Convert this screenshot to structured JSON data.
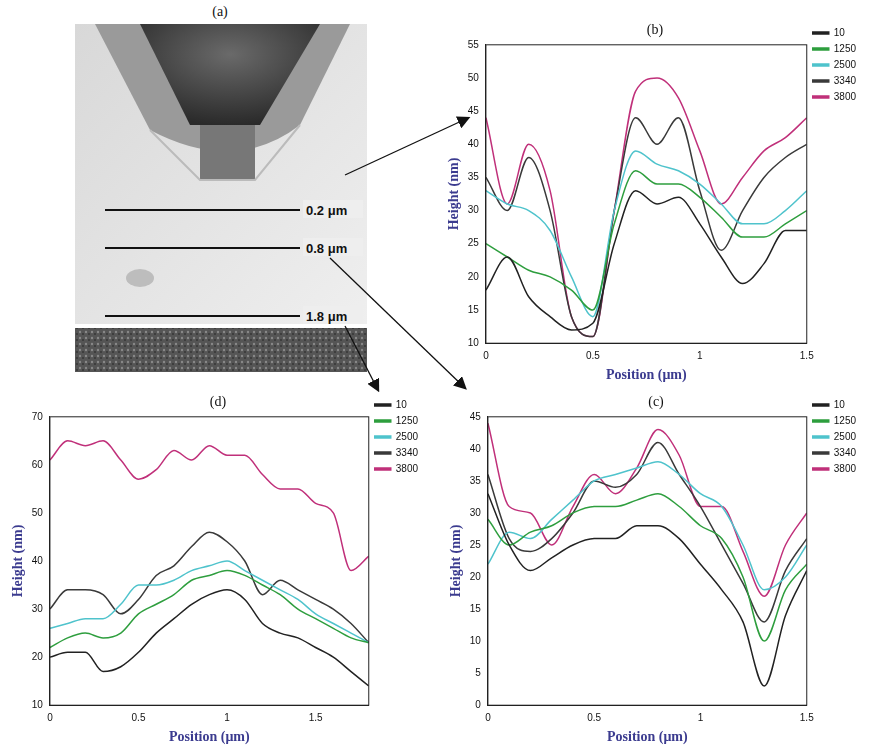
{
  "image_panel": {
    "title": "(a)",
    "scan_lines": [
      "0.2 μm",
      "0.8 μm",
      "1.8 μm"
    ]
  },
  "chart_data": [
    {
      "type": "line",
      "title": "(b)",
      "x_label": "Position (μm)",
      "y_label": "Height (nm)",
      "x": [
        0,
        0.1,
        0.2,
        0.3,
        0.4,
        0.5,
        0.6,
        0.7,
        0.8,
        0.9,
        1.0,
        1.1,
        1.2,
        1.3,
        1.4,
        1.5
      ],
      "series": [
        {
          "name": "10",
          "color": "#222222",
          "values": [
            18,
            23,
            17,
            14,
            12,
            13,
            25,
            33,
            31,
            32,
            28,
            23,
            19,
            22,
            27,
            27
          ]
        },
        {
          "name": "1250",
          "color": "#2e9e3e",
          "values": [
            25,
            23,
            21,
            20,
            18,
            15,
            28,
            36,
            34,
            34,
            32,
            29,
            26,
            26,
            28,
            30
          ]
        },
        {
          "name": "2500",
          "color": "#4fc3cc",
          "values": [
            33,
            31,
            30,
            27,
            20,
            14,
            30,
            39,
            37,
            36,
            34,
            31,
            28,
            28,
            30,
            33
          ]
        },
        {
          "name": "3340",
          "color": "#3a3a3a",
          "values": [
            35,
            30,
            38,
            30,
            14,
            11,
            30,
            44,
            40,
            44,
            33,
            24,
            30,
            35,
            38,
            40
          ]
        },
        {
          "name": "3800",
          "color": "#c0307a",
          "values": [
            44,
            31,
            40,
            33,
            14,
            11,
            30,
            48,
            50,
            47,
            39,
            31,
            35,
            39,
            41,
            44
          ]
        }
      ],
      "xlim": [
        0,
        1.5
      ],
      "xticks": [
        0,
        0.5,
        1,
        1.5
      ],
      "ylim": [
        10,
        55
      ],
      "yticks": [
        10,
        15,
        20,
        25,
        30,
        35,
        40,
        45,
        50,
        55
      ],
      "grid": false,
      "legend": "right"
    },
    {
      "type": "line",
      "title": "(c)",
      "x_label": "Position (μm)",
      "y_label": "Height (nm)",
      "x": [
        0,
        0.1,
        0.2,
        0.3,
        0.4,
        0.5,
        0.6,
        0.7,
        0.8,
        0.9,
        1.0,
        1.1,
        1.2,
        1.3,
        1.4,
        1.5
      ],
      "series": [
        {
          "name": "10",
          "color": "#222222",
          "values": [
            33,
            25,
            21,
            23,
            25,
            26,
            26,
            28,
            28,
            26,
            22,
            18,
            13,
            3,
            14,
            21
          ]
        },
        {
          "name": "1250",
          "color": "#2e9e3e",
          "values": [
            29,
            25,
            27,
            28,
            30,
            31,
            31,
            32,
            33,
            31,
            28,
            26,
            20,
            10,
            18,
            22
          ]
        },
        {
          "name": "2500",
          "color": "#4fc3cc",
          "values": [
            22,
            27,
            26,
            29,
            32,
            35,
            36,
            37,
            38,
            36,
            33,
            31,
            25,
            18,
            20,
            25
          ]
        },
        {
          "name": "3340",
          "color": "#3a3a3a",
          "values": [
            36,
            26,
            24,
            26,
            30,
            35,
            34,
            36,
            41,
            36,
            31,
            25,
            19,
            13,
            21,
            26
          ]
        },
        {
          "name": "3800",
          "color": "#c0307a",
          "values": [
            44,
            31,
            30,
            25,
            31,
            36,
            33,
            37,
            43,
            39,
            31,
            31,
            24,
            17,
            25,
            30
          ]
        }
      ],
      "xlim": [
        0,
        1.5
      ],
      "xticks": [
        0,
        0.5,
        1,
        1.5
      ],
      "ylim": [
        0,
        45
      ],
      "yticks": [
        0,
        5,
        10,
        15,
        20,
        25,
        30,
        35,
        40,
        45
      ],
      "grid": false,
      "legend": "right"
    },
    {
      "type": "line",
      "title": "(d)",
      "x_label": "Position (μm)",
      "y_label": "Height (nm)",
      "x": [
        0,
        0.1,
        0.2,
        0.3,
        0.4,
        0.5,
        0.6,
        0.7,
        0.8,
        0.9,
        1.0,
        1.1,
        1.2,
        1.3,
        1.4,
        1.5,
        1.6,
        1.7,
        1.8
      ],
      "series": [
        {
          "name": "10",
          "color": "#222222",
          "values": [
            20,
            21,
            21,
            17,
            18,
            21,
            25,
            28,
            31,
            33,
            34,
            32,
            27,
            25,
            24,
            22,
            20,
            17,
            14
          ]
        },
        {
          "name": "1250",
          "color": "#2e9e3e",
          "values": [
            22,
            24,
            25,
            24,
            25,
            29,
            31,
            33,
            36,
            37,
            38,
            37,
            35,
            33,
            30,
            28,
            26,
            24,
            23
          ]
        },
        {
          "name": "2500",
          "color": "#4fc3cc",
          "values": [
            26,
            27,
            28,
            28,
            31,
            35,
            35,
            36,
            38,
            39,
            40,
            38,
            36,
            34,
            32,
            29,
            27,
            25,
            23
          ]
        },
        {
          "name": "3340",
          "color": "#3a3a3a",
          "values": [
            30,
            34,
            34,
            33,
            29,
            32,
            37,
            39,
            43,
            46,
            44,
            40,
            33,
            36,
            34,
            32,
            30,
            27,
            23
          ]
        },
        {
          "name": "3800",
          "color": "#c0307a",
          "values": [
            61,
            65,
            64,
            65,
            61,
            57,
            59,
            63,
            61,
            64,
            62,
            62,
            58,
            55,
            55,
            52,
            50,
            38,
            41
          ]
        }
      ],
      "xlim": [
        0,
        1.8
      ],
      "xticks": [
        0,
        0.5,
        1,
        1.5
      ],
      "ylim": [
        10,
        70
      ],
      "yticks": [
        10,
        20,
        30,
        40,
        50,
        60,
        70
      ],
      "grid": false,
      "legend": "right"
    }
  ]
}
